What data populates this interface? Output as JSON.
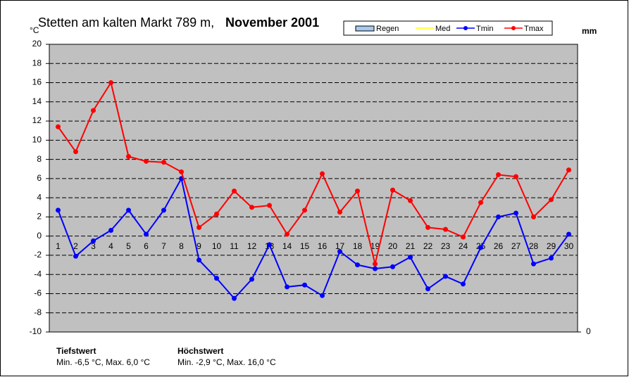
{
  "chart_data": {
    "type": "line",
    "title": "Stetten am kalten Markt 789 m,",
    "subtitle": "November 2001",
    "ylabel": "°C",
    "y2label": "mm",
    "categories": [
      "1",
      "2",
      "3",
      "4",
      "5",
      "6",
      "7",
      "8",
      "9",
      "10",
      "11",
      "12",
      "13",
      "14",
      "15",
      "16",
      "17",
      "18",
      "19",
      "20",
      "21",
      "22",
      "23",
      "24",
      "25",
      "26",
      "27",
      "28",
      "29",
      "30"
    ],
    "series": [
      {
        "name": "Regen",
        "color": "#a6caf0",
        "axis": "y2",
        "values": [
          null,
          null,
          null,
          null,
          null,
          null,
          null,
          null,
          null,
          null,
          null,
          null,
          null,
          null,
          null,
          null,
          null,
          null,
          null,
          null,
          null,
          null,
          null,
          null,
          null,
          null,
          null,
          null,
          null,
          null
        ]
      },
      {
        "name": "Med",
        "color": "#ffff00",
        "values": [
          null,
          null,
          null,
          null,
          null,
          null,
          null,
          null,
          null,
          null,
          null,
          null,
          null,
          null,
          null,
          null,
          null,
          null,
          null,
          null,
          null,
          null,
          null,
          null,
          null,
          null,
          null,
          null,
          null,
          null
        ]
      },
      {
        "name": "Tmin",
        "color": "#0000ff",
        "values": [
          2.7,
          -2.1,
          -0.5,
          0.6,
          2.7,
          0.2,
          2.7,
          6.0,
          -2.5,
          -4.4,
          -6.5,
          -4.5,
          -0.9,
          -5.3,
          -5.1,
          -6.2,
          -1.6,
          -3.0,
          -3.4,
          -3.2,
          -2.2,
          -5.5,
          -4.2,
          -5.0,
          -1.2,
          2.0,
          2.4,
          -2.9,
          -2.3,
          0.2
        ]
      },
      {
        "name": "Tmax",
        "color": "#ff0000",
        "values": [
          11.4,
          8.8,
          13.1,
          16.0,
          8.3,
          7.8,
          7.7,
          6.7,
          0.9,
          2.3,
          4.7,
          3.0,
          3.2,
          0.2,
          2.7,
          6.5,
          2.5,
          4.7,
          -2.9,
          4.8,
          3.7,
          0.9,
          0.7,
          -0.1,
          3.5,
          6.4,
          6.2,
          2.0,
          3.8,
          6.9
        ]
      }
    ],
    "ylim": [
      -10,
      20
    ],
    "yticks": [
      -10,
      -8,
      -6,
      -4,
      -2,
      0,
      2,
      4,
      6,
      8,
      10,
      12,
      14,
      16,
      18,
      20
    ],
    "y2lim": [
      0,
      100
    ],
    "y2ticks": [
      0
    ],
    "grid": true,
    "legend": "top",
    "annotations": [
      {
        "title": "Tiefstwert",
        "text": "Min. -6,5 °C, Max. 6,0 °C"
      },
      {
        "title": "Höchstwert",
        "text": "Min. -2,9 °C, Max. 16,0 °C"
      }
    ]
  }
}
